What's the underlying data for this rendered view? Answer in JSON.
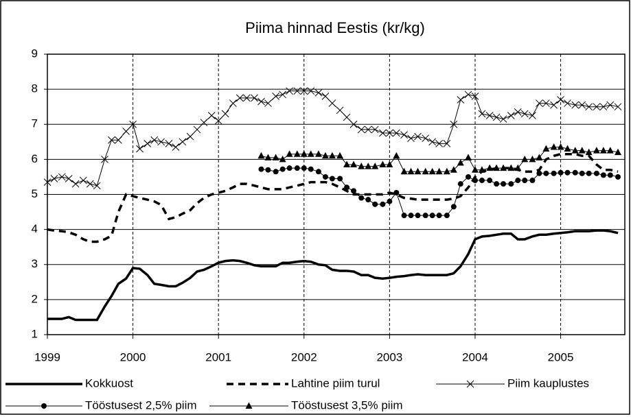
{
  "chart_data": {
    "type": "line",
    "title": "Piima hinnad Eestis (kr/kg)",
    "x": [
      1999,
      1999.08,
      1999.17,
      1999.25,
      1999.33,
      1999.42,
      1999.5,
      1999.58,
      1999.67,
      1999.75,
      1999.83,
      1999.92,
      2000,
      2000.08,
      2000.17,
      2000.25,
      2000.33,
      2000.42,
      2000.5,
      2000.58,
      2000.67,
      2000.75,
      2000.83,
      2000.92,
      2001,
      2001.08,
      2001.17,
      2001.25,
      2001.33,
      2001.42,
      2001.5,
      2001.58,
      2001.67,
      2001.75,
      2001.83,
      2001.92,
      2002,
      2002.08,
      2002.17,
      2002.25,
      2002.33,
      2002.42,
      2002.5,
      2002.58,
      2002.67,
      2002.75,
      2002.83,
      2002.92,
      2003,
      2003.08,
      2003.17,
      2003.25,
      2003.33,
      2003.42,
      2003.5,
      2003.58,
      2003.67,
      2003.75,
      2003.83,
      2003.92,
      2004,
      2004.08,
      2004.17,
      2004.25,
      2004.33,
      2004.42,
      2004.5,
      2004.58,
      2004.67,
      2004.75,
      2004.83,
      2004.92,
      2005,
      2005.08,
      2005.17,
      2005.25,
      2005.33,
      2005.42,
      2005.5,
      2005.58,
      2005.67
    ],
    "series": [
      {
        "name": "Kokkuost",
        "color": "#000000",
        "style": "thick",
        "values": [
          1.45,
          1.45,
          1.45,
          1.5,
          1.42,
          1.42,
          1.42,
          1.42,
          1.8,
          2.1,
          2.45,
          2.6,
          2.9,
          2.88,
          2.7,
          2.45,
          2.42,
          2.38,
          2.38,
          2.48,
          2.62,
          2.8,
          2.85,
          2.95,
          3.05,
          3.1,
          3.12,
          3.1,
          3.05,
          2.98,
          2.95,
          2.95,
          2.95,
          3.05,
          3.05,
          3.08,
          3.1,
          3.08,
          3.0,
          2.98,
          2.85,
          2.82,
          2.82,
          2.8,
          2.7,
          2.7,
          2.62,
          2.6,
          2.62,
          2.65,
          2.67,
          2.7,
          2.72,
          2.7,
          2.7,
          2.7,
          2.7,
          2.75,
          2.95,
          3.3,
          3.72,
          3.8,
          3.82,
          3.85,
          3.88,
          3.88,
          3.72,
          3.72,
          3.8,
          3.85,
          3.85,
          3.88,
          3.9,
          3.92,
          3.95,
          3.95,
          3.95,
          3.97,
          3.97,
          3.95,
          3.9
        ]
      },
      {
        "name": "Lahtine piim turul",
        "color": "#000000",
        "style": "dashed",
        "values": [
          4.0,
          3.97,
          3.95,
          3.92,
          3.85,
          3.72,
          3.65,
          3.65,
          3.72,
          3.82,
          4.5,
          5.0,
          4.95,
          4.9,
          4.85,
          4.8,
          4.7,
          4.3,
          4.35,
          4.45,
          4.55,
          4.75,
          4.9,
          5.0,
          5.05,
          5.1,
          5.2,
          5.3,
          5.3,
          5.25,
          5.2,
          5.15,
          5.15,
          5.15,
          5.2,
          5.25,
          5.3,
          5.35,
          5.35,
          5.35,
          5.3,
          5.2,
          5.1,
          5.0,
          5.0,
          5.0,
          5.0,
          5.0,
          5.05,
          5.0,
          4.9,
          4.88,
          4.85,
          4.85,
          4.85,
          4.85,
          4.85,
          4.88,
          4.95,
          5.2,
          5.5,
          5.65,
          5.7,
          5.75,
          5.75,
          5.75,
          5.7,
          5.65,
          5.65,
          5.7,
          6.0,
          6.1,
          6.15,
          6.15,
          6.15,
          6.1,
          6.1,
          5.85,
          5.7,
          5.7,
          5.65
        ]
      },
      {
        "name": "Piim kauplustes",
        "color": "#000000",
        "style": "thin",
        "marker": "x",
        "values": [
          5.35,
          5.45,
          5.5,
          5.45,
          5.3,
          5.4,
          5.3,
          5.25,
          6.0,
          6.55,
          6.55,
          6.8,
          7.0,
          6.3,
          6.45,
          6.55,
          6.5,
          6.45,
          6.35,
          6.5,
          6.65,
          6.85,
          7.05,
          7.25,
          7.1,
          7.3,
          7.6,
          7.75,
          7.75,
          7.75,
          7.65,
          7.6,
          7.8,
          7.85,
          7.95,
          7.95,
          7.95,
          7.95,
          7.9,
          7.8,
          7.6,
          7.4,
          7.2,
          7.0,
          6.85,
          6.85,
          6.85,
          6.75,
          6.75,
          6.75,
          6.7,
          6.6,
          6.65,
          6.6,
          6.5,
          6.45,
          6.45,
          7.0,
          7.7,
          7.85,
          7.8,
          7.3,
          7.25,
          7.2,
          7.15,
          7.25,
          7.35,
          7.3,
          7.25,
          7.6,
          7.6,
          7.55,
          7.7,
          7.6,
          7.55,
          7.55,
          7.5,
          7.5,
          7.5,
          7.55,
          7.5
        ]
      },
      {
        "name": "Tööstusest 2,5% piim",
        "color": "#000000",
        "style": "thin",
        "marker": "circle",
        "values": [
          null,
          null,
          null,
          null,
          null,
          null,
          null,
          null,
          null,
          null,
          null,
          null,
          null,
          null,
          null,
          null,
          null,
          null,
          null,
          null,
          null,
          null,
          null,
          null,
          null,
          null,
          null,
          null,
          null,
          null,
          5.72,
          5.7,
          5.65,
          5.72,
          5.75,
          5.75,
          5.75,
          5.72,
          5.65,
          5.5,
          5.45,
          5.45,
          5.2,
          5.1,
          4.9,
          4.85,
          4.72,
          4.72,
          4.8,
          5.05,
          4.4,
          4.4,
          4.4,
          4.4,
          4.4,
          4.4,
          4.4,
          4.65,
          5.3,
          5.5,
          5.4,
          5.4,
          5.4,
          5.3,
          5.3,
          5.3,
          5.4,
          5.4,
          5.4,
          5.6,
          5.6,
          5.6,
          5.62,
          5.62,
          5.62,
          5.6,
          5.6,
          5.6,
          5.55,
          5.55,
          5.5
        ]
      },
      {
        "name": "Tööstusest 3,5% piim",
        "color": "#000000",
        "style": "thin",
        "marker": "triangle",
        "values": [
          null,
          null,
          null,
          null,
          null,
          null,
          null,
          null,
          null,
          null,
          null,
          null,
          null,
          null,
          null,
          null,
          null,
          null,
          null,
          null,
          null,
          null,
          null,
          null,
          null,
          null,
          null,
          null,
          null,
          null,
          6.1,
          6.05,
          6.05,
          6.0,
          6.15,
          6.15,
          6.15,
          6.15,
          6.15,
          6.1,
          6.1,
          6.1,
          5.85,
          5.85,
          5.8,
          5.8,
          5.8,
          5.85,
          5.85,
          6.1,
          5.65,
          5.65,
          5.65,
          5.65,
          5.65,
          5.65,
          5.65,
          5.7,
          5.9,
          6.05,
          5.7,
          5.7,
          5.75,
          5.75,
          5.75,
          5.75,
          5.75,
          6.0,
          6.0,
          6.05,
          6.3,
          6.35,
          6.35,
          6.3,
          6.25,
          6.25,
          6.2,
          6.25,
          6.25,
          6.25,
          6.2
        ]
      }
    ],
    "xlim": [
      1999,
      2005.75
    ],
    "xticks": [
      1999,
      2000,
      2001,
      2002,
      2003,
      2004,
      2005
    ],
    "ylim": [
      1,
      9
    ],
    "yticks": [
      1,
      2,
      3,
      4,
      5,
      6,
      7,
      8,
      9
    ],
    "grid": true,
    "legend": "bottom"
  }
}
